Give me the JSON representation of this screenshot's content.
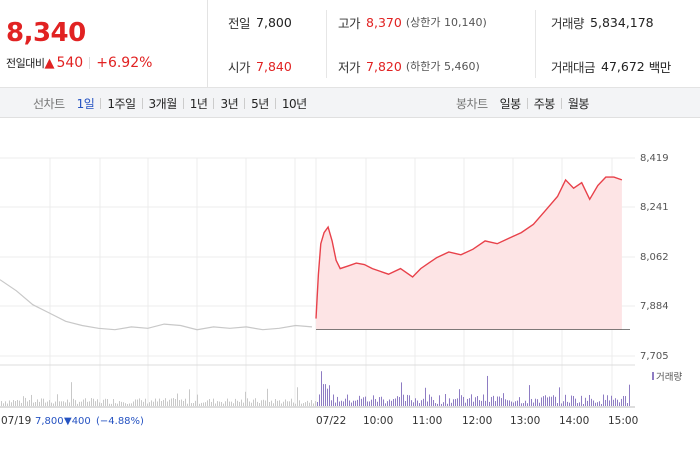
{
  "quote": {
    "price": "8,340",
    "change_label": "전일대비",
    "change_arrow": "▲",
    "change_abs": "540",
    "change_rate": "+6.92%"
  },
  "stats": {
    "prev_close": {
      "label": "전일",
      "value": "7,800"
    },
    "open": {
      "label": "시가",
      "value": "7,840"
    },
    "high": {
      "label": "고가",
      "value": "8,370",
      "limit": "(상한가 10,140)"
    },
    "low": {
      "label": "저가",
      "value": "7,820",
      "limit": "(하한가 5,460)"
    },
    "volume": {
      "label": "거래량",
      "value": "5,834,178"
    },
    "amount": {
      "label": "거래대금",
      "value": "47,672",
      "unit": "백만"
    }
  },
  "tabs": {
    "line_title": "선차트",
    "line_periods": [
      "1일",
      "1주일",
      "3개월",
      "1년",
      "3년",
      "5년",
      "10년"
    ],
    "active_period": "1일",
    "candle_title": "봉차트",
    "candle_periods": [
      "일봉",
      "주봉",
      "월봉"
    ]
  },
  "chart_data": {
    "type": "line",
    "title": "",
    "y_ticks": [
      "8,419",
      "8,241",
      "8,062",
      "7,884",
      "7,705"
    ],
    "ylim": [
      7705,
      8419
    ],
    "x_ticks": [
      "07/19",
      "07/22",
      "10:00",
      "11:00",
      "12:00",
      "13:00",
      "14:00",
      "15:00"
    ],
    "prev_day_label": "07/19",
    "prev_day_close": "7,800",
    "prev_day_change": "▼400",
    "prev_day_rate": "(−4.88%)",
    "volume_legend": "거래량",
    "prev_day_series_color": "#c8c8c8",
    "today_series_color": "#e8414a",
    "today_fill_color": "#fde4e5",
    "volume_color_today": "#8e7cc3",
    "volume_color_prev": "#c8c8c8",
    "baseline_value": 7800,
    "today_series": [
      {
        "t": "09:00",
        "v": 7840
      },
      {
        "t": "09:03",
        "v": 8000
      },
      {
        "t": "09:06",
        "v": 8110
      },
      {
        "t": "09:10",
        "v": 8150
      },
      {
        "t": "09:15",
        "v": 8170
      },
      {
        "t": "09:20",
        "v": 8120
      },
      {
        "t": "09:25",
        "v": 8050
      },
      {
        "t": "09:30",
        "v": 8020
      },
      {
        "t": "09:40",
        "v": 8030
      },
      {
        "t": "09:50",
        "v": 8040
      },
      {
        "t": "10:00",
        "v": 8035
      },
      {
        "t": "10:10",
        "v": 8020
      },
      {
        "t": "10:20",
        "v": 8010
      },
      {
        "t": "10:30",
        "v": 8000
      },
      {
        "t": "10:45",
        "v": 8020
      },
      {
        "t": "11:00",
        "v": 7990
      },
      {
        "t": "11:10",
        "v": 8020
      },
      {
        "t": "11:20",
        "v": 8040
      },
      {
        "t": "11:30",
        "v": 8060
      },
      {
        "t": "11:45",
        "v": 8080
      },
      {
        "t": "12:00",
        "v": 8070
      },
      {
        "t": "12:15",
        "v": 8090
      },
      {
        "t": "12:30",
        "v": 8120
      },
      {
        "t": "12:45",
        "v": 8110
      },
      {
        "t": "13:00",
        "v": 8130
      },
      {
        "t": "13:15",
        "v": 8150
      },
      {
        "t": "13:30",
        "v": 8180
      },
      {
        "t": "13:45",
        "v": 8230
      },
      {
        "t": "14:00",
        "v": 8280
      },
      {
        "t": "14:10",
        "v": 8340
      },
      {
        "t": "14:20",
        "v": 8310
      },
      {
        "t": "14:30",
        "v": 8330
      },
      {
        "t": "14:40",
        "v": 8270
      },
      {
        "t": "14:50",
        "v": 8320
      },
      {
        "t": "15:00",
        "v": 8350
      },
      {
        "t": "15:10",
        "v": 8350
      },
      {
        "t": "15:20",
        "v": 8340
      }
    ],
    "prev_day_series": [
      7980,
      7940,
      7890,
      7860,
      7830,
      7815,
      7805,
      7800,
      7810,
      7805,
      7820,
      7815,
      7800,
      7810,
      7805,
      7810,
      7800,
      7805,
      7815,
      7810
    ]
  }
}
